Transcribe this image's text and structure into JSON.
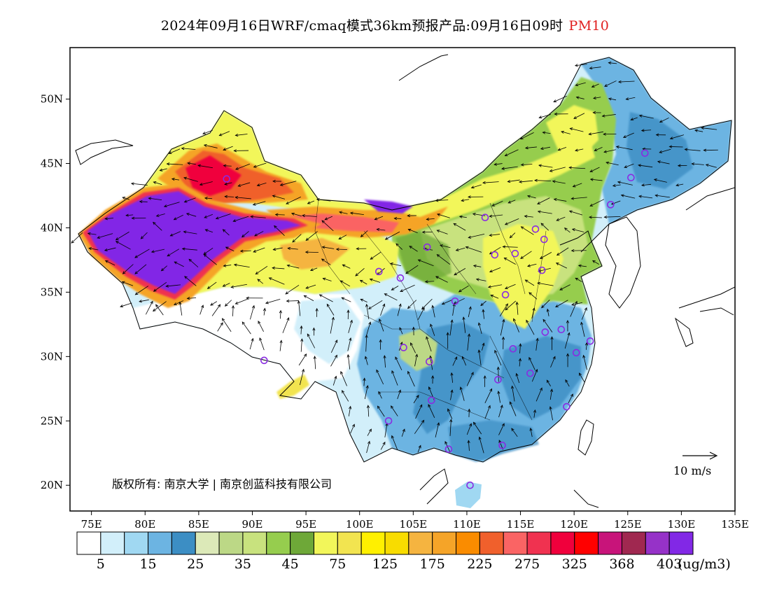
{
  "title": {
    "text": "2024年09月16日WRF/cmaq模式36km预报产品:09月16日09时",
    "pollutant": "PM10",
    "pollutant_color": "#e02020"
  },
  "map": {
    "lon_range": [
      73,
      135
    ],
    "lat_range": [
      18,
      54
    ],
    "lon_ticks": [
      {
        "value": 75,
        "label": "75E"
      },
      {
        "value": 80,
        "label": "80E"
      },
      {
        "value": 85,
        "label": "85E"
      },
      {
        "value": 90,
        "label": "90E"
      },
      {
        "value": 95,
        "label": "95E"
      },
      {
        "value": 100,
        "label": "100E"
      },
      {
        "value": 105,
        "label": "105E"
      },
      {
        "value": 110,
        "label": "110E"
      },
      {
        "value": 115,
        "label": "115E"
      },
      {
        "value": 120,
        "label": "120E"
      },
      {
        "value": 125,
        "label": "125E"
      },
      {
        "value": 130,
        "label": "130E"
      },
      {
        "value": 135,
        "label": "135E"
      }
    ],
    "lat_ticks": [
      {
        "value": 20,
        "label": "20N"
      },
      {
        "value": 25,
        "label": "25N"
      },
      {
        "value": 30,
        "label": "30N"
      },
      {
        "value": 35,
        "label": "35N"
      },
      {
        "value": 40,
        "label": "40N"
      },
      {
        "value": 45,
        "label": "45N"
      },
      {
        "value": 50,
        "label": "50N"
      }
    ],
    "copyright": "版权所有: 南京大学 | 南京创蓝科技有限公司",
    "wind_scale_label": "10 m/s",
    "stations": [
      [
        87.6,
        43.8
      ],
      [
        101.8,
        36.6
      ],
      [
        103.8,
        36.1
      ],
      [
        106.3,
        38.5
      ],
      [
        111.7,
        40.8
      ],
      [
        112.6,
        37.9
      ],
      [
        114.5,
        38.0
      ],
      [
        116.4,
        39.9
      ],
      [
        117.2,
        39.1
      ],
      [
        123.4,
        41.8
      ],
      [
        125.3,
        43.9
      ],
      [
        126.6,
        45.8
      ],
      [
        117.0,
        36.7
      ],
      [
        113.6,
        34.8
      ],
      [
        108.9,
        34.3
      ],
      [
        104.1,
        30.7
      ],
      [
        106.5,
        29.6
      ],
      [
        114.3,
        30.6
      ],
      [
        117.3,
        31.9
      ],
      [
        118.8,
        32.1
      ],
      [
        120.2,
        30.3
      ],
      [
        121.5,
        31.2
      ],
      [
        112.9,
        28.2
      ],
      [
        115.9,
        28.7
      ],
      [
        119.3,
        26.1
      ],
      [
        106.7,
        26.6
      ],
      [
        102.7,
        25.0
      ],
      [
        108.3,
        22.8
      ],
      [
        113.3,
        23.1
      ],
      [
        110.3,
        20.0
      ],
      [
        91.1,
        29.7
      ]
    ]
  },
  "legend": {
    "colors": [
      "#ffffff",
      "#d2effa",
      "#a0d8f2",
      "#6cb4e2",
      "#3c8ec4",
      "#dce9b8",
      "#bcd886",
      "#c8e27e",
      "#96cd4e",
      "#6ea838",
      "#f2f65a",
      "#f2e450",
      "#fff000",
      "#f8dc00",
      "#f5b440",
      "#f5a428",
      "#fa8c00",
      "#f0602c",
      "#fa6464",
      "#f03250",
      "#f0003c",
      "#ff0000",
      "#c8147a",
      "#a02850",
      "#9632c8",
      "#8228e6"
    ],
    "labels": [
      "5",
      "15",
      "25",
      "35",
      "45",
      "75",
      "125",
      "175",
      "225",
      "275",
      "325",
      "368",
      "403"
    ],
    "unit": "(ug/m3)"
  }
}
